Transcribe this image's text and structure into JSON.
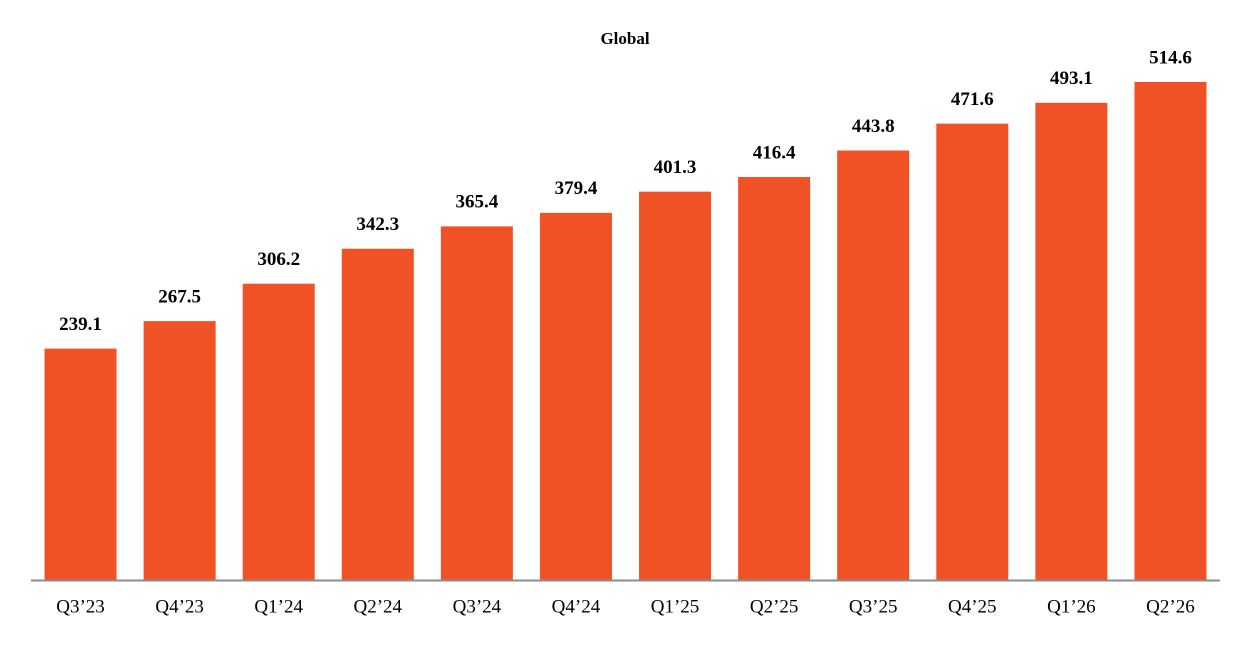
{
  "chart_data": {
    "type": "bar",
    "title": "Global",
    "categories": [
      "Q3’23",
      "Q4’23",
      "Q1’24",
      "Q2’24",
      "Q3’24",
      "Q4’24",
      "Q1’25",
      "Q2’25",
      "Q3’25",
      "Q4’25",
      "Q1’26",
      "Q2’26"
    ],
    "values": [
      239.1,
      267.5,
      306.2,
      342.3,
      365.4,
      379.4,
      401.3,
      416.4,
      443.8,
      471.6,
      493.1,
      514.6
    ],
    "color": "#f05225"
  }
}
